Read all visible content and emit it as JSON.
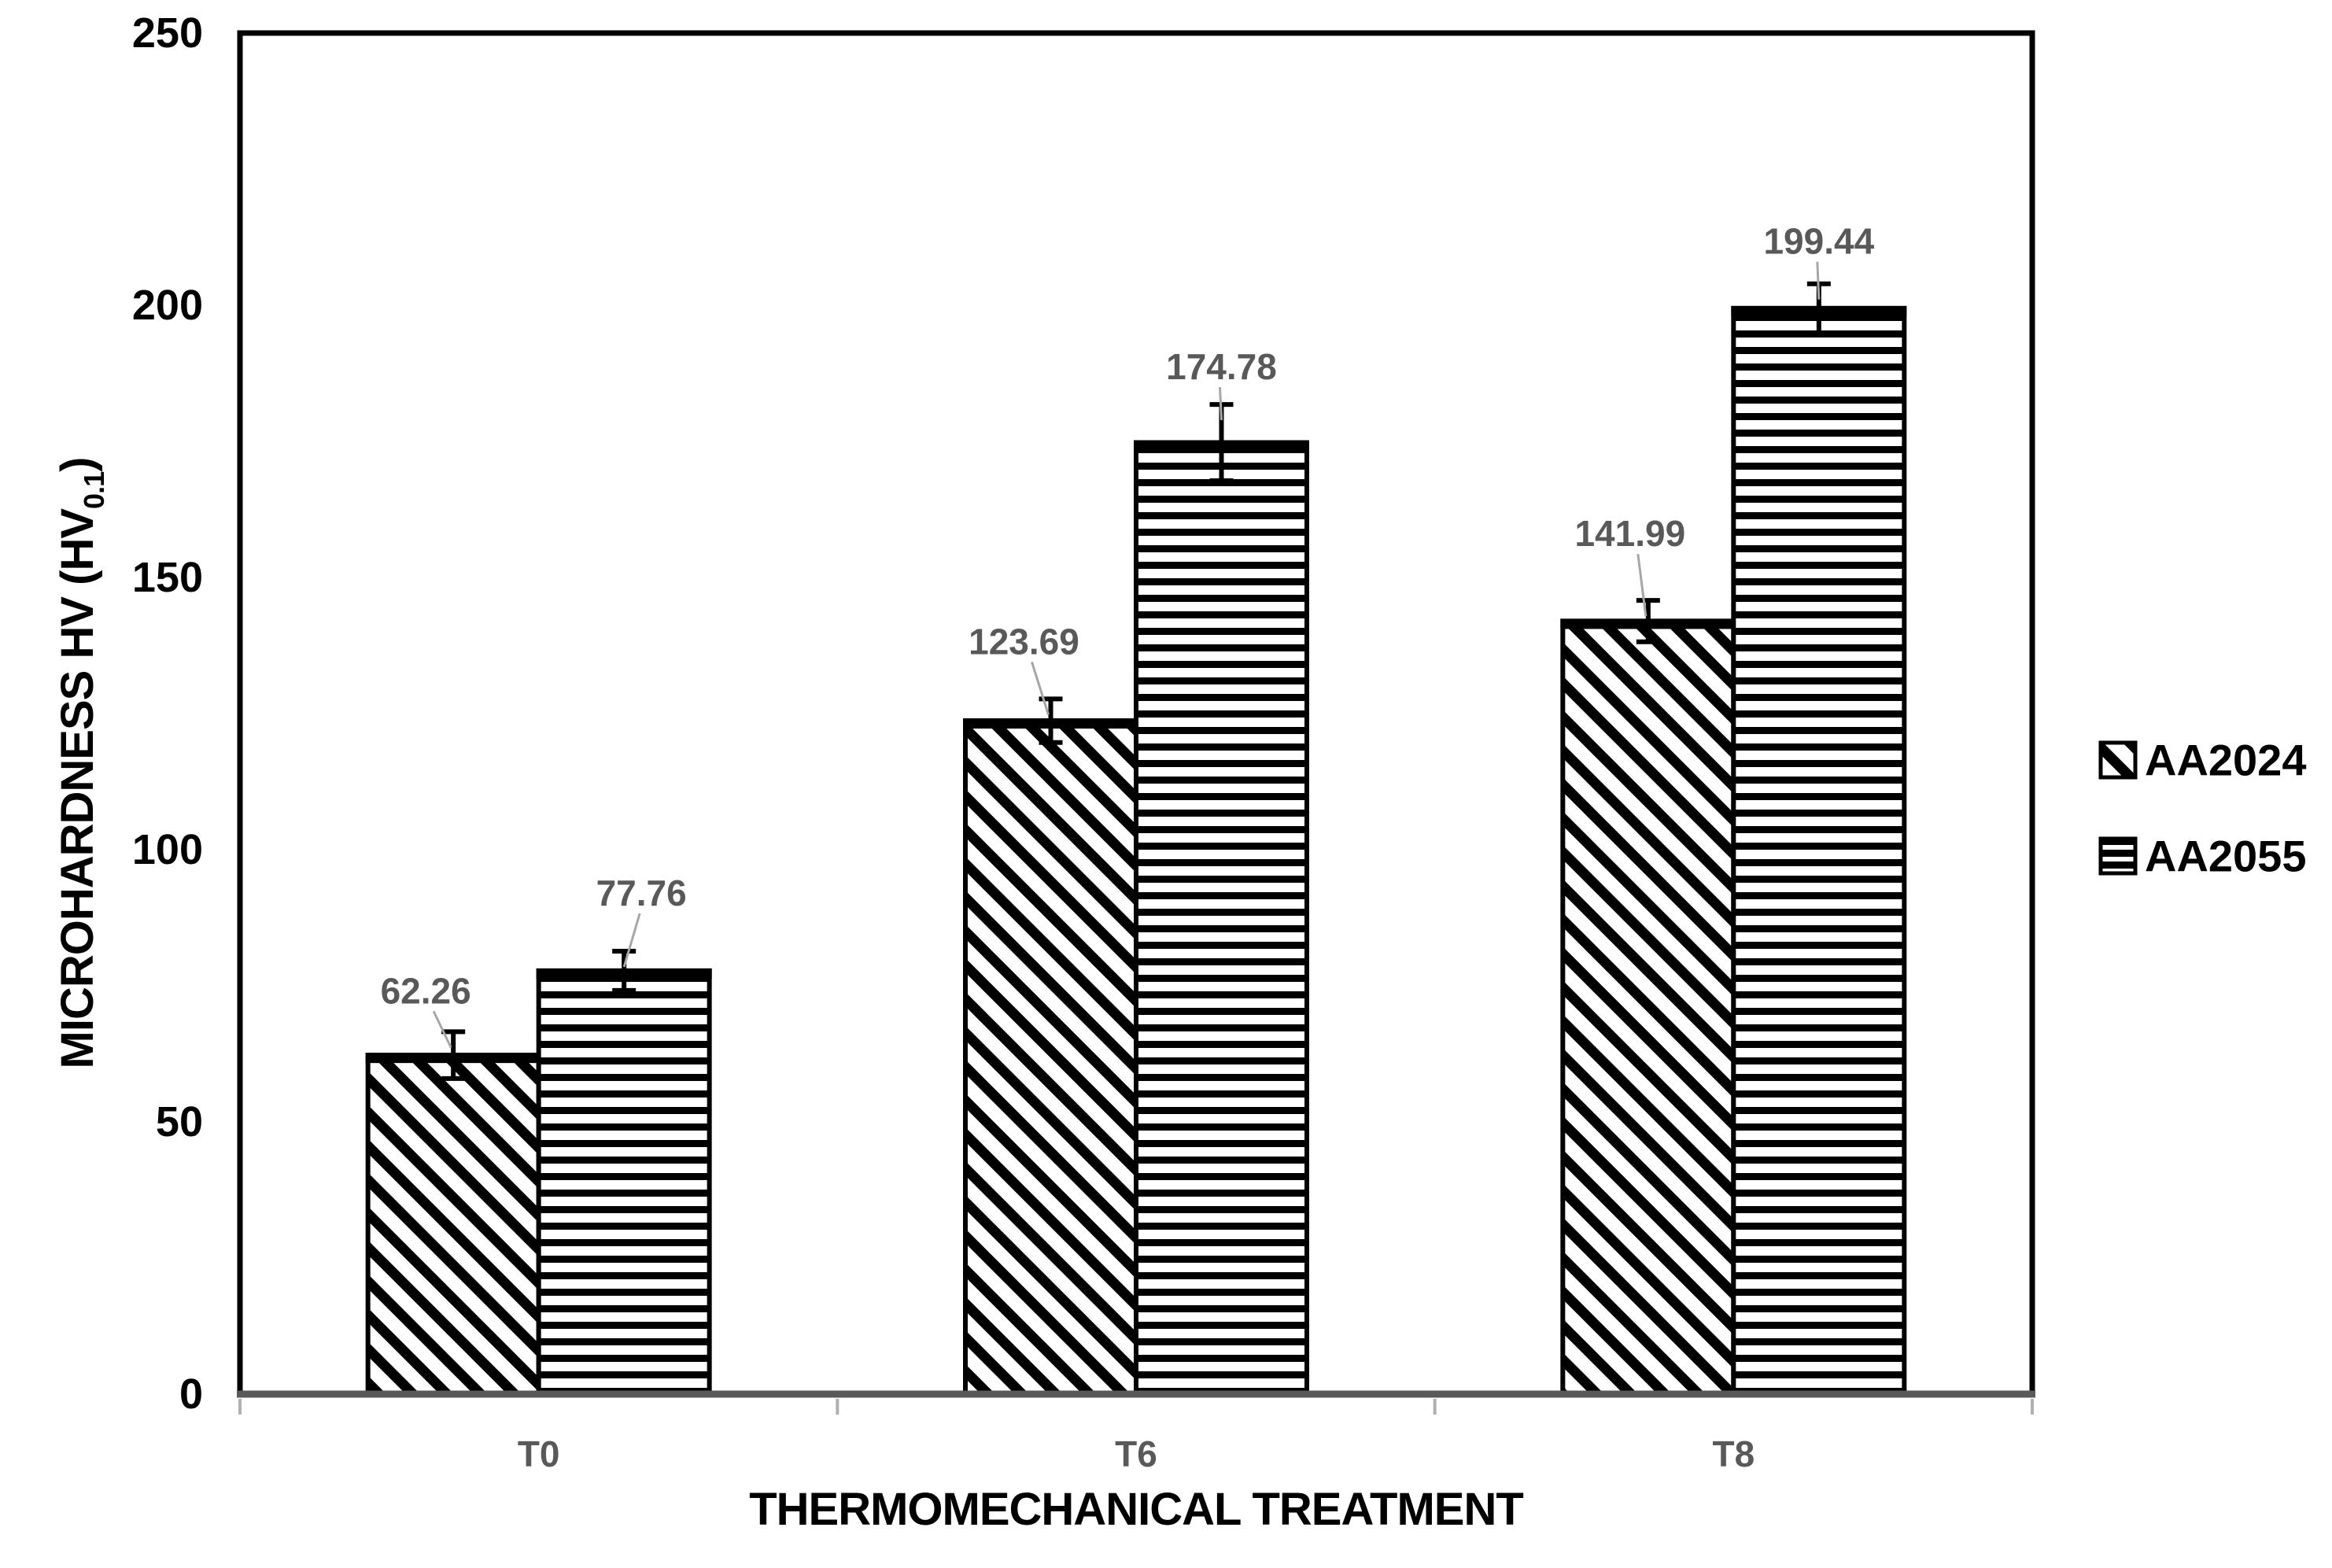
{
  "chart_data": {
    "type": "bar",
    "title": "",
    "categories": [
      "T0",
      "T6",
      "T8"
    ],
    "series": [
      {
        "name": "AA2024",
        "pattern": "diagonal-hatch",
        "values": [
          62.26,
          123.69,
          141.99
        ],
        "labels": [
          "62.26",
          "123.69",
          "141.99"
        ],
        "errors": [
          4.3,
          4.0,
          3.8
        ],
        "label_offsets": [
          {
            "dx": -35,
            "gap": 52
          },
          {
            "dx": -34,
            "gap": 73
          },
          {
            "dx": -23,
            "gap": 85
          }
        ]
      },
      {
        "name": "AA2055",
        "pattern": "horizontal-lines",
        "values": [
          77.76,
          174.78,
          199.44
        ],
        "labels": [
          "77.76",
          "174.78",
          "199.44"
        ],
        "errors": [
          3.6,
          7.0,
          4.5
        ],
        "label_offsets": [
          {
            "dx": 22,
            "gap": 74
          },
          {
            "dx": 0,
            "gap": 48
          },
          {
            "dx": 0,
            "gap": 54
          }
        ]
      }
    ],
    "xlabel": "THERMOMECHANICAL TREATMENT",
    "ylabel_main": "MICROHARDNESS HV (HV",
    "ylabel_subscript": "0.1",
    "ylabel_suffix": ")",
    "ylim": [
      0,
      250
    ],
    "yticks": [
      "0",
      "50",
      "100",
      "150",
      "200",
      "250"
    ],
    "ytick_values": [
      0,
      50,
      100,
      150,
      200,
      250
    ],
    "grid": false,
    "legend_position": "right",
    "legend": [
      "AA2024",
      "AA2055"
    ],
    "colors": {
      "bar_fill": "#ffffff",
      "pattern_ink": "#000000",
      "bar_border": "#000000",
      "data_label": "#595959",
      "category_label": "#595959",
      "tick_label": "#000000",
      "axis_title": "#000000",
      "axis_line": "#595959",
      "axis_tick": "#b0b0b0",
      "leader_line": "#a6a6a6",
      "background": "#ffffff"
    }
  }
}
